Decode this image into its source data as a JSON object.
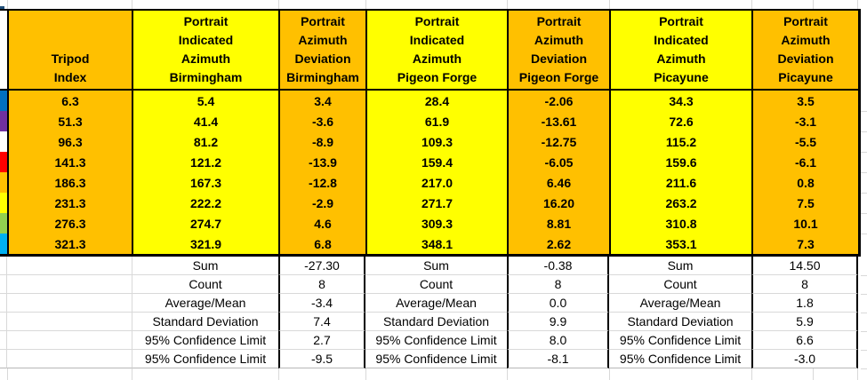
{
  "app": {
    "kind": "spreadsheet-region"
  },
  "table": {
    "colors": {
      "orange": "#FFC000",
      "yellow": "#FFFF00",
      "grid": "#D9D9D9",
      "border": "#000000"
    },
    "row_colors": [
      "#0070C0",
      "#7030A0",
      "#FFFFFF",
      "#FF0000",
      "#FFC000",
      "#FFFF00",
      "#92D050",
      "#00B0F0"
    ],
    "headers": {
      "tripod": "Tripod\nIndex",
      "b_ind": "Portrait\nIndicated\nAzimuth\nBirmingham",
      "b_dev": "Portrait\nAzimuth\nDeviation\nBirmingham",
      "pf_ind": "Portrait\nIndicated\nAzimuth\nPigeon Forge",
      "pf_dev": "Portrait\nAzimuth\nDeviation\nPigeon Forge",
      "pc_ind": "Portrait\nIndicated\nAzimuth\nPicayune",
      "pc_dev": "Portrait\nAzimuth\nDeviation\nPicayune"
    },
    "rows": [
      {
        "tripod": "6.3",
        "b_ind": "5.4",
        "b_dev": "3.4",
        "pf_ind": "28.4",
        "pf_dev": "-2.06",
        "pc_ind": "34.3",
        "pc_dev": "3.5"
      },
      {
        "tripod": "51.3",
        "b_ind": "41.4",
        "b_dev": "-3.6",
        "pf_ind": "61.9",
        "pf_dev": "-13.61",
        "pc_ind": "72.6",
        "pc_dev": "-3.1"
      },
      {
        "tripod": "96.3",
        "b_ind": "81.2",
        "b_dev": "-8.9",
        "pf_ind": "109.3",
        "pf_dev": "-12.75",
        "pc_ind": "115.2",
        "pc_dev": "-5.5"
      },
      {
        "tripod": "141.3",
        "b_ind": "121.2",
        "b_dev": "-13.9",
        "pf_ind": "159.4",
        "pf_dev": "-6.05",
        "pc_ind": "159.6",
        "pc_dev": "-6.1"
      },
      {
        "tripod": "186.3",
        "b_ind": "167.3",
        "b_dev": "-12.8",
        "pf_ind": "217.0",
        "pf_dev": "6.46",
        "pc_ind": "211.6",
        "pc_dev": "0.8"
      },
      {
        "tripod": "231.3",
        "b_ind": "222.2",
        "b_dev": "-2.9",
        "pf_ind": "271.7",
        "pf_dev": "16.20",
        "pc_ind": "263.2",
        "pc_dev": "7.5"
      },
      {
        "tripod": "276.3",
        "b_ind": "274.7",
        "b_dev": "4.6",
        "pf_ind": "309.3",
        "pf_dev": "8.81",
        "pc_ind": "310.8",
        "pc_dev": "10.1"
      },
      {
        "tripod": "321.3",
        "b_ind": "321.9",
        "b_dev": "6.8",
        "pf_ind": "348.1",
        "pf_dev": "2.62",
        "pc_ind": "353.1",
        "pc_dev": "7.3"
      }
    ],
    "summary": {
      "labels": [
        "Sum",
        "Count",
        "Average/Mean",
        "Standard Deviation",
        "95% Confidence Limit",
        "95% Confidence Limit"
      ],
      "birmingham": [
        "-27.30",
        "8",
        "-3.4",
        "7.4",
        "2.7",
        "-9.5"
      ],
      "pigeon_forge": [
        "-0.38",
        "8",
        "0.0",
        "9.9",
        "8.0",
        "-8.1"
      ],
      "picayune": [
        "14.50",
        "8",
        "1.8",
        "5.9",
        "6.6",
        "-3.0"
      ]
    }
  }
}
